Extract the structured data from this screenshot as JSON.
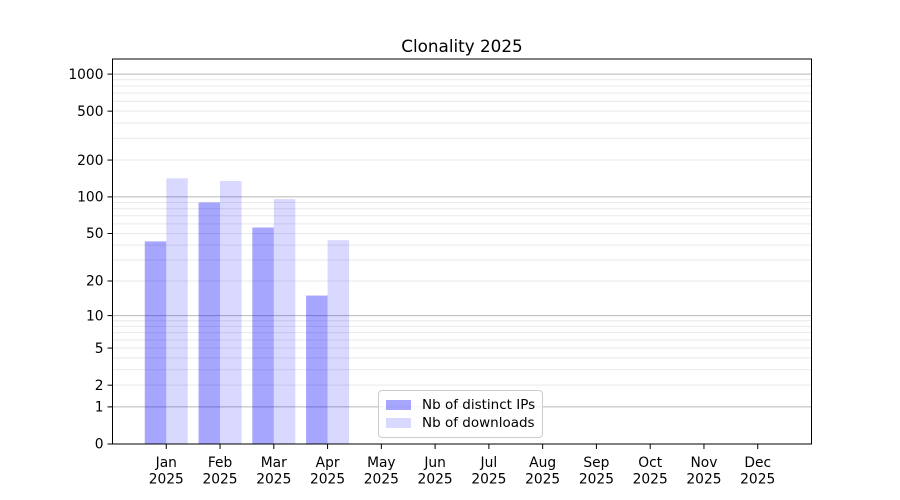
{
  "chart_data": {
    "type": "bar",
    "title": "Clonality 2025",
    "categories": [
      "Jan 2025",
      "Feb 2025",
      "Mar 2025",
      "Apr 2025",
      "May 2025",
      "Jun 2025",
      "Jul 2025",
      "Aug 2025",
      "Sep 2025",
      "Oct 2025",
      "Nov 2025",
      "Dec 2025"
    ],
    "series": [
      {
        "name": "Nb of distinct IPs",
        "color": "rgba(0,0,255,0.35)",
        "values": [
          43,
          90,
          56,
          15,
          0,
          0,
          0,
          0,
          0,
          0,
          0,
          0
        ]
      },
      {
        "name": "Nb of downloads",
        "color": "rgba(0,0,255,0.15)",
        "values": [
          142,
          135,
          96,
          44,
          0,
          0,
          0,
          0,
          0,
          0,
          0,
          0
        ]
      }
    ],
    "xlabel": "",
    "ylabel": "",
    "yscale": "log1p",
    "y_ticks": [
      0,
      1,
      2,
      5,
      10,
      20,
      50,
      100,
      200,
      500,
      1000
    ],
    "ylim": [
      0,
      1326
    ],
    "grid": "both",
    "legend_position": "lower-center-inside"
  },
  "style_colors": {
    "major_grid": "#b8b8b8",
    "minor_grid": "#e9e9e9",
    "axis": "#000000",
    "text": "#000000"
  }
}
